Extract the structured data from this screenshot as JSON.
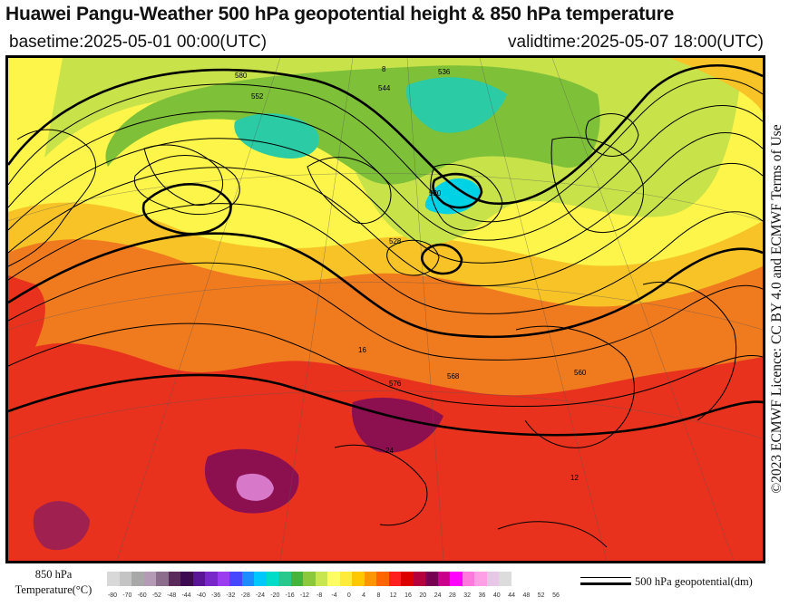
{
  "header": {
    "title": "Huawei Pangu-Weather 500 hPa geopotential height & 850 hPa temperature",
    "basetime": "basetime:2025-05-01 00:00(UTC)",
    "validtime": "validtime:2025-05-07 18:00(UTC)"
  },
  "side_text": "©2023 ECMWF Licence: CC BY 4.0 and ECMWF Terms of Use",
  "map": {
    "contour_labels": [
      "580",
      "552",
      "8",
      "544",
      "536",
      "520",
      "528",
      "560",
      "16",
      "576",
      "568",
      "24",
      "12"
    ]
  },
  "legend": {
    "title_line1": "850 hPa",
    "title_line2": "Temperature(°C)",
    "ticks": [
      "-80",
      "-70",
      "-60",
      "-52",
      "-48",
      "-44",
      "-40",
      "-36",
      "-32",
      "-28",
      "-24",
      "-20",
      "-16",
      "-12",
      "-8",
      "-4",
      "0",
      "4",
      "8",
      "12",
      "16",
      "20",
      "24",
      "28",
      "32",
      "36",
      "40",
      "44",
      "48",
      "52",
      "56"
    ],
    "colors": [
      "#d8d8d8",
      "#c4c4c4",
      "#a8a8a8",
      "#b49ab4",
      "#8c6e8c",
      "#5a2a5a",
      "#3c0a50",
      "#5a1496",
      "#7828c8",
      "#9b3cf0",
      "#4646ff",
      "#1e8cff",
      "#00c8ff",
      "#00dcc8",
      "#28c88c",
      "#46b43c",
      "#8cc83c",
      "#c8e650",
      "#ffff64",
      "#ffeb3c",
      "#ffc800",
      "#ff9600",
      "#ff6400",
      "#ff1e1e",
      "#dc0000",
      "#b4003c",
      "#780050",
      "#c8008c",
      "#ff00ff",
      "#ff78dc",
      "#ffa0e6",
      "#e6c8e6",
      "#dcdcdc"
    ],
    "contour_label": "500 hPa geopotential(dm)"
  }
}
